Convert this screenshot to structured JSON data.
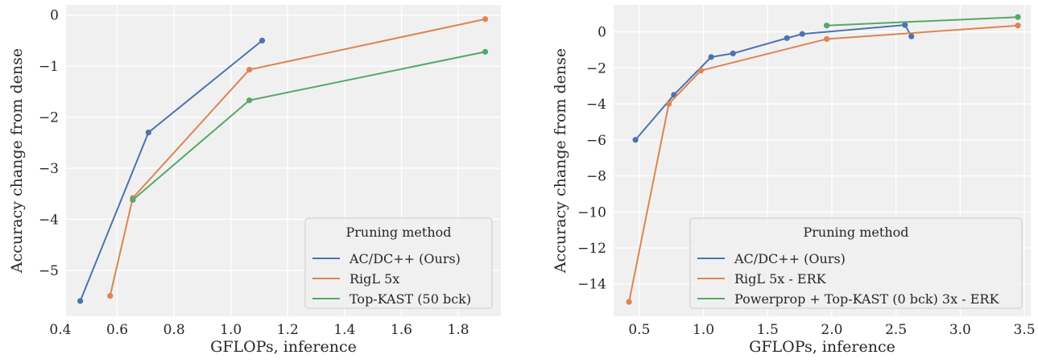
{
  "chart_data": [
    {
      "type": "line",
      "xlabel": "GFLOPs, inference",
      "ylabel": "Accuracy change from dense",
      "xlim": [
        0.42,
        1.95
      ],
      "ylim": [
        -5.9,
        0.2
      ],
      "xticks": [
        0.4,
        0.6,
        0.8,
        1.0,
        1.2,
        1.4,
        1.6,
        1.8
      ],
      "xtick_labels": [
        "0.4",
        "0.6",
        "0.8",
        "1.0",
        "1.2",
        "1.4",
        "1.6",
        "1.8"
      ],
      "yticks": [
        0,
        -1,
        -2,
        -3,
        -4,
        -5
      ],
      "ytick_labels": [
        "0",
        "−1",
        "−2",
        "−3",
        "−4",
        "−5"
      ],
      "grid": true,
      "legend_title": "Pruning method",
      "legend_position": "lower-right",
      "series": [
        {
          "name": "AC/DC++ (Ours)",
          "color": "#4c72b0",
          "x": [
            0.47,
            0.71,
            1.11
          ],
          "y": [
            -5.6,
            -2.3,
            -0.5
          ]
        },
        {
          "name": "RigL 5x",
          "color": "#dd8452",
          "x": [
            0.575,
            0.655,
            1.065,
            1.895
          ],
          "y": [
            -5.5,
            -3.58,
            -1.07,
            -0.08
          ]
        },
        {
          "name": "Top-KAST (50 bck)",
          "color": "#55a868",
          "x": [
            0.655,
            1.065,
            1.895
          ],
          "y": [
            -3.62,
            -1.67,
            -0.72
          ]
        }
      ]
    },
    {
      "type": "line",
      "xlabel": "GFLOPs, inference",
      "ylabel": "Accuracy change from dense",
      "xlim": [
        0.3,
        3.55
      ],
      "ylim": [
        -15.8,
        1.5
      ],
      "xticks": [
        0.5,
        1.0,
        1.5,
        2.0,
        2.5,
        3.0,
        3.5
      ],
      "xtick_labels": [
        "0.5",
        "1.0",
        "1.5",
        "2.0",
        "2.5",
        "3.0",
        "3.5"
      ],
      "yticks": [
        0,
        -2,
        -4,
        -6,
        -8,
        -10,
        -12,
        -14
      ],
      "ytick_labels": [
        "0",
        "−2",
        "−4",
        "−6",
        "−8",
        "−10",
        "−12",
        "−14"
      ],
      "grid": true,
      "legend_title": "Pruning method",
      "legend_position": "lower-right",
      "series": [
        {
          "name": "AC/DC++ (Ours)",
          "color": "#4c72b0",
          "x": [
            0.47,
            0.77,
            1.06,
            1.23,
            1.65,
            1.77,
            2.57,
            2.62
          ],
          "y": [
            -6.0,
            -3.5,
            -1.4,
            -1.2,
            -0.35,
            -0.12,
            0.38,
            -0.25
          ]
        },
        {
          "name": "RigL 5x - ERK",
          "color": "#dd8452",
          "x": [
            0.42,
            0.73,
            0.98,
            1.96,
            3.45
          ],
          "y": [
            -15.0,
            -4.0,
            -2.15,
            -0.4,
            0.35
          ]
        },
        {
          "name": "Powerprop + Top-KAST (0 bck) 3x - ERK",
          "color": "#55a868",
          "x": [
            1.96,
            3.45
          ],
          "y": [
            0.35,
            0.82
          ]
        }
      ]
    }
  ]
}
